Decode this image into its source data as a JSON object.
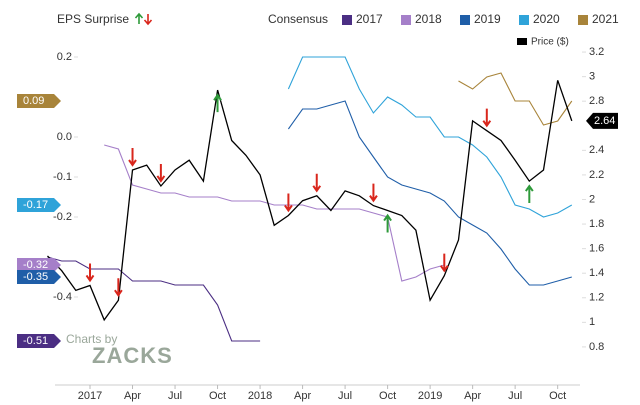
{
  "chart_data": {
    "type": "line",
    "legend_title": "EPS Surprise",
    "consensus_title": "Consensus",
    "credit": [
      "Charts by",
      "ZACKS"
    ],
    "x": [
      "2016-10",
      "2016-11",
      "2016-12",
      "2017-01",
      "2017-02",
      "2017-03",
      "2017-04",
      "2017-05",
      "2017-06",
      "2017-07",
      "2017-08",
      "2017-09",
      "2017-10",
      "2017-11",
      "2017-12",
      "2018-01",
      "2018-02",
      "2018-03",
      "2018-04",
      "2018-05",
      "2018-06",
      "2018-07",
      "2018-08",
      "2018-09",
      "2018-10",
      "2018-11",
      "2018-12",
      "2019-01",
      "2019-02",
      "2019-03",
      "2019-04",
      "2019-05",
      "2019-06",
      "2019-07",
      "2019-08",
      "2019-09",
      "2019-10",
      "2019-11"
    ],
    "xlim": [
      "2016-10",
      "2019-12"
    ],
    "xticks": [
      {
        "value": "2017-01",
        "label": "2017"
      },
      {
        "value": "2017-04",
        "label": "Apr"
      },
      {
        "value": "2017-07",
        "label": "Jul"
      },
      {
        "value": "2017-10",
        "label": "Oct"
      },
      {
        "value": "2018-01",
        "label": "2018"
      },
      {
        "value": "2018-04",
        "label": "Apr"
      },
      {
        "value": "2018-07",
        "label": "Jul"
      },
      {
        "value": "2018-10",
        "label": "Oct"
      },
      {
        "value": "2019-01",
        "label": "2019"
      },
      {
        "value": "2019-04",
        "label": "Apr"
      },
      {
        "value": "2019-07",
        "label": "Jul"
      },
      {
        "value": "2019-10",
        "label": "Oct"
      }
    ],
    "ylim": [
      -0.62,
      0.24
    ],
    "yticks": [
      0.2,
      {
        "value": 0,
        "label": "0.0"
      },
      -0.1,
      -0.2,
      -0.4
    ],
    "y2lim": [
      0.49,
      3.29
    ],
    "y2ticks": [
      0.8,
      1,
      1.2,
      1.4,
      1.6,
      1.8,
      2,
      2.2,
      2.4,
      2.8,
      3,
      3.2
    ],
    "grid": false,
    "series": [
      {
        "name": "2017",
        "color": "#4b2e83",
        "values": [
          -0.3,
          -0.31,
          -0.31,
          -0.33,
          -0.33,
          -0.33,
          -0.36,
          -0.36,
          -0.36,
          -0.37,
          -0.37,
          -0.37,
          -0.42,
          -0.51,
          -0.51,
          -0.51,
          null,
          null,
          null,
          null,
          null,
          null,
          null,
          null,
          null,
          null,
          null,
          null,
          null,
          null,
          null,
          null,
          null,
          null,
          null,
          null,
          null,
          null
        ]
      },
      {
        "name": "2018",
        "color": "#a57fc9",
        "values": [
          null,
          null,
          null,
          null,
          -0.02,
          -0.03,
          -0.12,
          -0.13,
          -0.14,
          -0.14,
          -0.15,
          -0.15,
          -0.15,
          -0.16,
          -0.16,
          -0.16,
          -0.17,
          -0.17,
          -0.17,
          -0.18,
          -0.18,
          -0.18,
          -0.18,
          -0.19,
          -0.2,
          -0.36,
          -0.35,
          -0.33,
          -0.32,
          null,
          null,
          null,
          null,
          null,
          null,
          null,
          null,
          null
        ]
      },
      {
        "name": "2019",
        "color": "#1f5ea8",
        "values": [
          null,
          null,
          null,
          null,
          null,
          null,
          null,
          null,
          null,
          null,
          null,
          null,
          null,
          null,
          null,
          null,
          null,
          0.02,
          0.07,
          0.07,
          0.08,
          0.09,
          0.0,
          -0.05,
          -0.1,
          -0.12,
          -0.13,
          -0.14,
          -0.16,
          -0.2,
          -0.22,
          -0.24,
          -0.28,
          -0.33,
          -0.37,
          -0.37,
          -0.36,
          -0.35
        ]
      },
      {
        "name": "2020",
        "color": "#2fa3d9",
        "values": [
          null,
          null,
          null,
          null,
          null,
          null,
          null,
          null,
          null,
          null,
          null,
          null,
          null,
          null,
          null,
          null,
          null,
          0.12,
          0.2,
          0.2,
          0.2,
          0.2,
          0.12,
          0.06,
          0.1,
          0.08,
          0.05,
          0.05,
          0.0,
          0.0,
          -0.02,
          -0.05,
          -0.1,
          -0.17,
          -0.18,
          -0.2,
          -0.19,
          -0.17
        ]
      },
      {
        "name": "2021",
        "color": "#a8843a",
        "values": [
          null,
          null,
          null,
          null,
          null,
          null,
          null,
          null,
          null,
          null,
          null,
          null,
          null,
          null,
          null,
          null,
          null,
          null,
          null,
          null,
          null,
          null,
          null,
          null,
          null,
          null,
          null,
          null,
          null,
          0.14,
          0.12,
          0.15,
          0.16,
          0.09,
          0.09,
          0.03,
          0.04,
          0.09
        ]
      },
      {
        "name": "Price ($)",
        "color": "#000000",
        "axis": "y2",
        "values": [
          1.54,
          1.42,
          1.26,
          1.3,
          1.02,
          1.18,
          2.24,
          2.28,
          2.11,
          2.24,
          2.32,
          2.15,
          2.89,
          2.48,
          2.36,
          2.2,
          1.79,
          1.87,
          1.99,
          2.03,
          1.91,
          2.07,
          2.03,
          1.95,
          1.91,
          1.87,
          1.75,
          1.18,
          1.38,
          1.67,
          2.64,
          2.56,
          2.48,
          2.32,
          2.15,
          2.24,
          2.97,
          2.64
        ]
      }
    ],
    "surprises": [
      {
        "x": "2017-01",
        "direction": "down"
      },
      {
        "x": "2017-03",
        "direction": "down"
      },
      {
        "x": "2017-04",
        "direction": "down"
      },
      {
        "x": "2017-06",
        "direction": "down"
      },
      {
        "x": "2017-10",
        "direction": "up"
      },
      {
        "x": "2018-03",
        "direction": "down"
      },
      {
        "x": "2018-05",
        "direction": "down"
      },
      {
        "x": "2018-09",
        "direction": "down"
      },
      {
        "x": "2018-10",
        "direction": "up"
      },
      {
        "x": "2019-02",
        "direction": "down"
      },
      {
        "x": "2019-05",
        "direction": "down"
      },
      {
        "x": "2019-08",
        "direction": "up"
      }
    ]
  }
}
